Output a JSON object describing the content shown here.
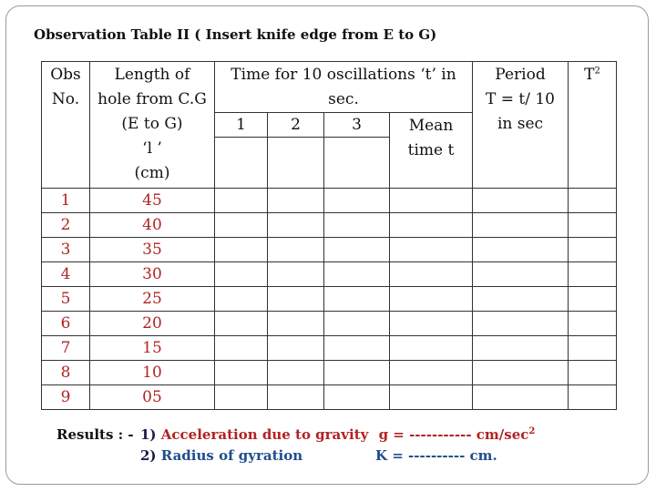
{
  "heading": "Observation Table II ( Insert knife edge from E to G)",
  "table": {
    "headers": {
      "obs_no": [
        "Obs",
        "No."
      ],
      "length": [
        "Length of",
        "hole from C.G",
        "(E to G)",
        "‘l ’",
        "(cm)"
      ],
      "time_group": [
        "Time for 10 oscillations ‘t’ in",
        "sec."
      ],
      "time_cols": [
        "1",
        "2",
        "3"
      ],
      "mean": [
        "Mean",
        "time t"
      ],
      "period": [
        "Period",
        "T = t/ 10",
        "in  sec"
      ],
      "t_squared_base": "T",
      "t_squared_exp": "2"
    },
    "rows": [
      {
        "obs": "1",
        "length": "45"
      },
      {
        "obs": "2",
        "length": "40"
      },
      {
        "obs": "3",
        "length": "35"
      },
      {
        "obs": "4",
        "length": "30"
      },
      {
        "obs": "5",
        "length": "25"
      },
      {
        "obs": "6",
        "length": "20"
      },
      {
        "obs": "7",
        "length": "15"
      },
      {
        "obs": "8",
        "length": "10"
      },
      {
        "obs": "9",
        "length": "05"
      }
    ]
  },
  "results": {
    "prefix": "Results : -",
    "item1_num": "1)",
    "item1_label": "Acceleration due to gravity",
    "item1_formula": "g = ----------- cm/sec",
    "item1_exp": "2",
    "item2_num": "2)",
    "item2_label": "Radius of gyration",
    "item2_formula": "K =  ---------- cm."
  }
}
